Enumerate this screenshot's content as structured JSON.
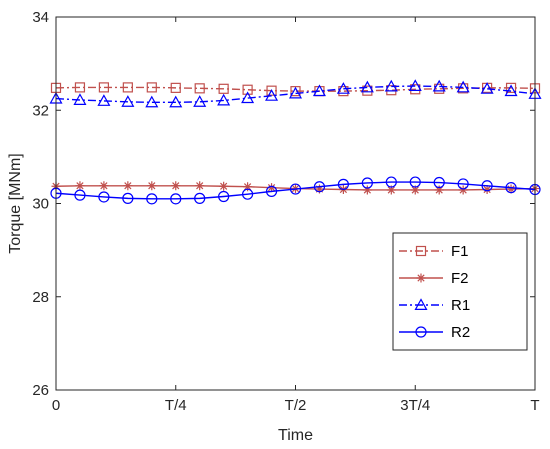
{
  "chart_data": {
    "type": "line",
    "xlabel": "Time",
    "ylabel": "Torque [MNm]",
    "x_ticks": [
      0,
      0.25,
      0.5,
      0.75,
      1
    ],
    "x_tick_labels": [
      "0",
      "T/4",
      "T/2",
      "3T/4",
      "T"
    ],
    "xlim": [
      0,
      1
    ],
    "ylim": [
      26,
      34
    ],
    "y_ticks": [
      26,
      28,
      30,
      32,
      34
    ],
    "y_tick_labels": [
      "26",
      "28",
      "30",
      "32",
      "34"
    ],
    "grid": false,
    "legend_position": "lower-right",
    "x": [
      0,
      0.05,
      0.1,
      0.15,
      0.2,
      0.25,
      0.3,
      0.35,
      0.4,
      0.45,
      0.5,
      0.55,
      0.6,
      0.65,
      0.7,
      0.75,
      0.8,
      0.85,
      0.9,
      0.95,
      1.0
    ],
    "series": [
      {
        "name": "F1",
        "color": "#c0504d",
        "dash": "dashdot",
        "marker": "square",
        "values": [
          32.48,
          32.49,
          32.49,
          32.49,
          32.49,
          32.48,
          32.47,
          32.46,
          32.44,
          32.42,
          32.41,
          32.41,
          32.41,
          32.42,
          32.43,
          32.45,
          32.46,
          32.47,
          32.48,
          32.48,
          32.47
        ]
      },
      {
        "name": "F2",
        "color": "#c0504d",
        "dash": "solid",
        "marker": "asterisk",
        "values": [
          30.37,
          30.38,
          30.38,
          30.38,
          30.38,
          30.38,
          30.38,
          30.37,
          30.36,
          30.34,
          30.32,
          30.31,
          30.3,
          30.29,
          30.29,
          30.29,
          30.29,
          30.29,
          30.3,
          30.31,
          30.32
        ]
      },
      {
        "name": "R1",
        "color": "#0000ff",
        "dash": "dashdot",
        "marker": "triangle",
        "values": [
          32.25,
          32.22,
          32.2,
          32.18,
          32.17,
          32.17,
          32.18,
          32.21,
          32.26,
          32.31,
          32.36,
          32.41,
          32.46,
          32.49,
          32.51,
          32.52,
          32.51,
          32.49,
          32.46,
          32.41,
          32.35
        ]
      },
      {
        "name": "R2",
        "color": "#0000ff",
        "dash": "solid",
        "marker": "circle",
        "values": [
          30.22,
          30.18,
          30.14,
          30.11,
          30.1,
          30.1,
          30.11,
          30.15,
          30.2,
          30.26,
          30.31,
          30.36,
          30.41,
          30.44,
          30.46,
          30.46,
          30.45,
          30.42,
          30.38,
          30.34,
          30.3
        ]
      }
    ]
  }
}
